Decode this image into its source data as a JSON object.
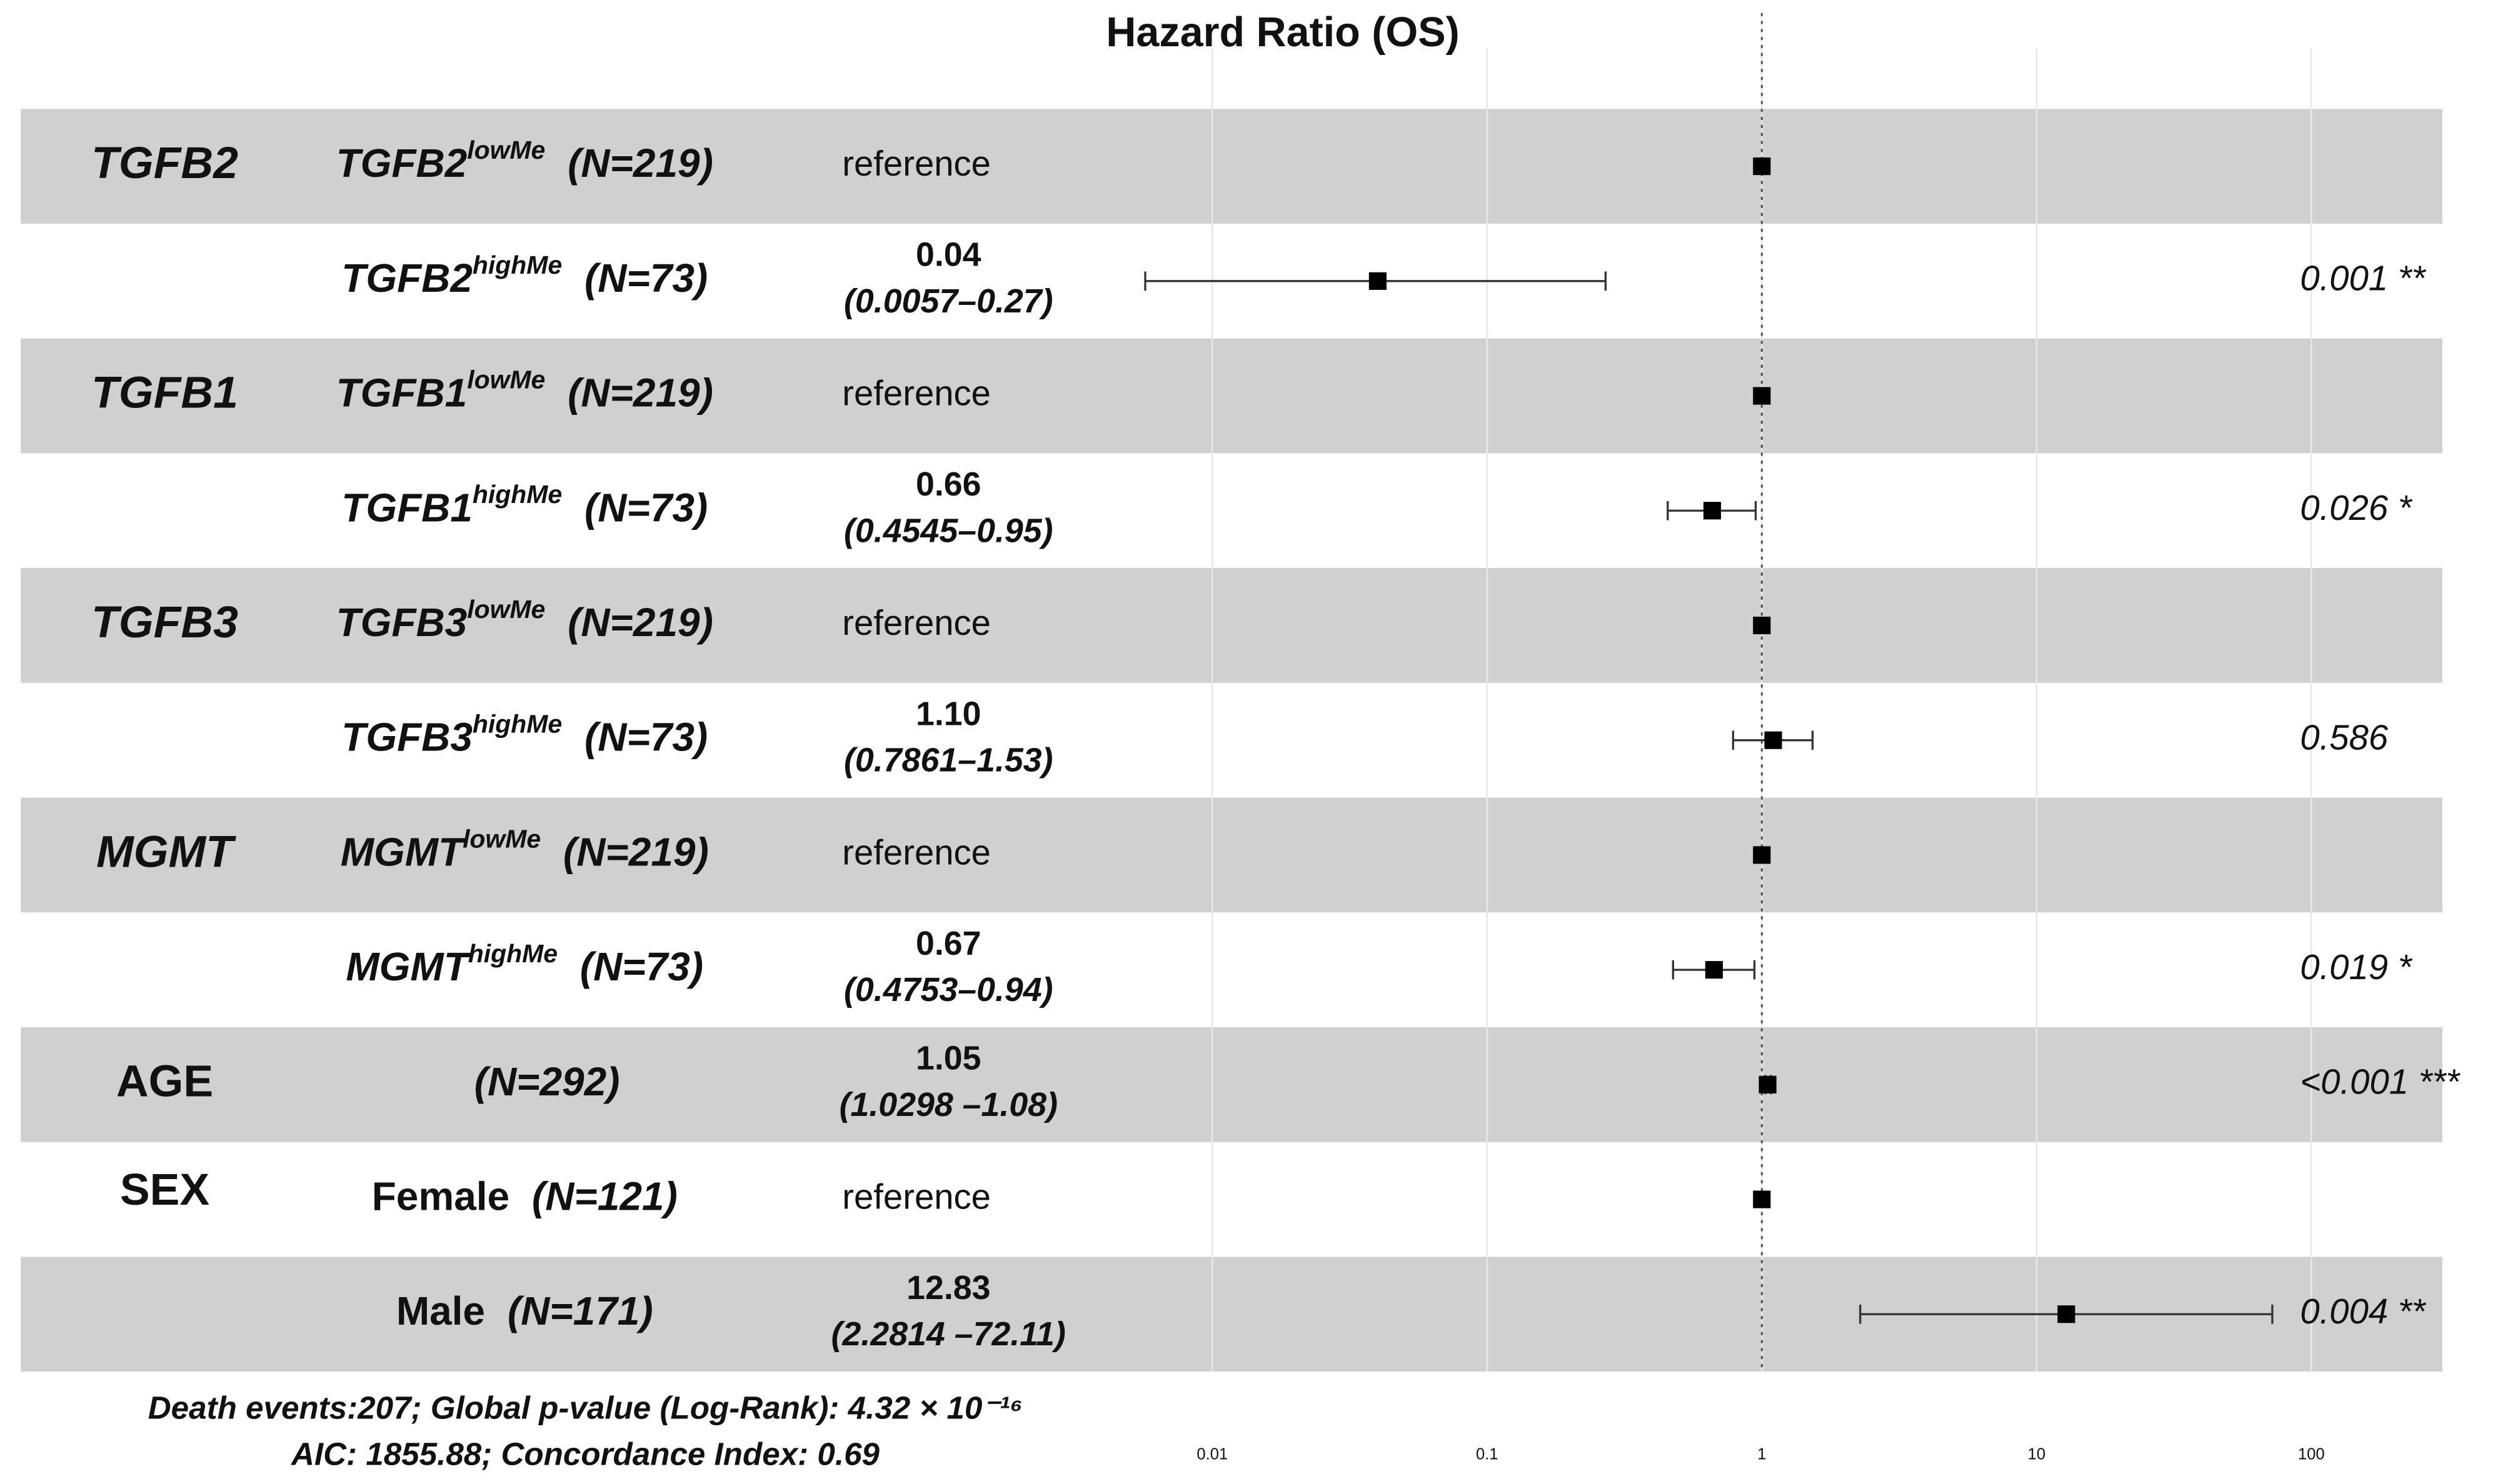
{
  "chart_data": {
    "type": "forest",
    "title": "Hazard Ratio (OS)",
    "groups": [
      "TGFB2",
      null,
      "TGFB1",
      null,
      "TGFB3",
      null,
      "MGMT",
      null,
      "AGE",
      "SEX",
      null
    ],
    "labels": [
      "TGFB2",
      "TGFB2",
      "TGFB1",
      "TGFB1",
      "TGFB3",
      "TGFB3",
      "MGMT",
      "MGMT",
      null,
      "Female",
      "Male"
    ],
    "label_sups": [
      "lowMe",
      "highMe",
      "lowMe",
      "highMe",
      "lowMe",
      "highMe",
      "lowMe",
      "highMe",
      null,
      null,
      null
    ],
    "counts": [
      "(N=219)",
      "(N=73)",
      "(N=219)",
      "(N=73)",
      "(N=219)",
      "(N=73)",
      "(N=219)",
      "(N=73)",
      "(N=292)",
      "(N=121)",
      "(N=171)"
    ],
    "estimate_texts": [
      "reference",
      null,
      "reference",
      null,
      "reference",
      null,
      "reference",
      null,
      null,
      "reference",
      null
    ],
    "values": [
      1,
      0.04,
      1,
      0.66,
      1,
      1.1,
      1,
      0.67,
      1.05,
      1,
      12.83
    ],
    "value_labels": [
      null,
      "0.04",
      null,
      "0.66",
      null,
      "1.10",
      null,
      "0.67",
      "1.05",
      null,
      "12.83"
    ],
    "ci_low": [
      null,
      0.0057,
      null,
      0.4545,
      null,
      0.7861,
      null,
      0.4753,
      1.0298,
      null,
      2.2814
    ],
    "ci_high": [
      null,
      0.27,
      null,
      0.95,
      null,
      1.53,
      null,
      0.94,
      1.08,
      null,
      72.11
    ],
    "ci_labels": [
      null,
      "(0.0057–0.27)",
      null,
      "(0.4545–0.95)",
      null,
      "(0.7861–1.53)",
      null,
      "(0.4753–0.94)",
      "(1.0298 –1.08)",
      null,
      "(2.2814 –72.11)"
    ],
    "p_values": [
      null,
      "0.001 **",
      null,
      "0.026 *",
      null,
      "0.586",
      null,
      "0.019 *",
      "<0.001 ***",
      null,
      "0.004 **"
    ],
    "xlim": [
      0.0046,
      300
    ],
    "xticks": [
      0.01,
      0.1,
      1,
      10,
      100
    ],
    "log_x": true,
    "reference_line": 1,
    "color": "#000000",
    "band_color": "#d0d0d0",
    "notes": [
      "Death events:207;  Global p-value (Log-Rank): 4.32 × 10⁻¹⁶",
      "AIC: 1855.88; Concordance Index: 0.69"
    ]
  }
}
